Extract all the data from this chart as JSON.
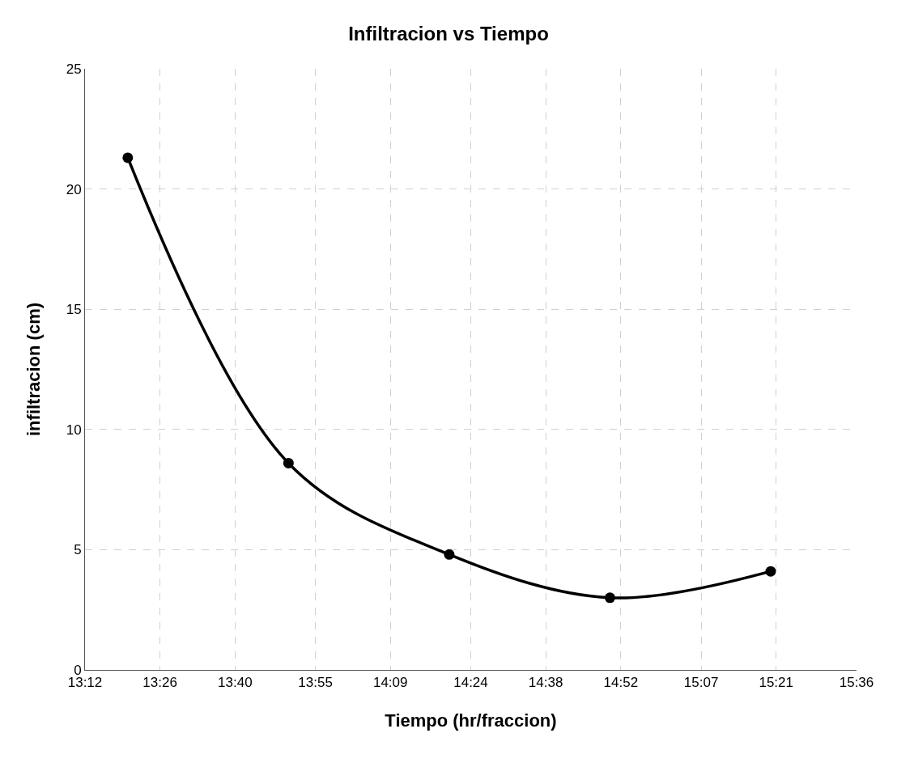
{
  "chart_data": {
    "type": "line",
    "title": "Infiltracion vs Tiempo",
    "xlabel": "Tiempo (hr/fraccion)",
    "ylabel": "infiltracion (cm)",
    "x": [
      13.333,
      13.833,
      14.333,
      14.833,
      15.333
    ],
    "series": [
      {
        "color": "#000000",
        "values": [
          21.3,
          8.6,
          4.8,
          3.0,
          4.1
        ]
      }
    ],
    "xlim": [
      13.2,
      15.6
    ],
    "xticks": [
      {
        "value": 13.2,
        "label": "13:12"
      },
      {
        "value": 13.4333,
        "label": "13:26"
      },
      {
        "value": 13.6667,
        "label": "13:40"
      },
      {
        "value": 13.9167,
        "label": "13:55"
      },
      {
        "value": 14.15,
        "label": "14:09"
      },
      {
        "value": 14.4,
        "label": "14:24"
      },
      {
        "value": 14.6333,
        "label": "14:38"
      },
      {
        "value": 14.8667,
        "label": "14:52"
      },
      {
        "value": 15.1167,
        "label": "15:07"
      },
      {
        "value": 15.35,
        "label": "15:21"
      },
      {
        "value": 15.6,
        "label": "15:36"
      }
    ],
    "ylim": [
      0,
      25
    ],
    "yticks": [
      0,
      5,
      10,
      15,
      20,
      25
    ],
    "grid": true,
    "marker": "circle",
    "line_style": "solid"
  }
}
